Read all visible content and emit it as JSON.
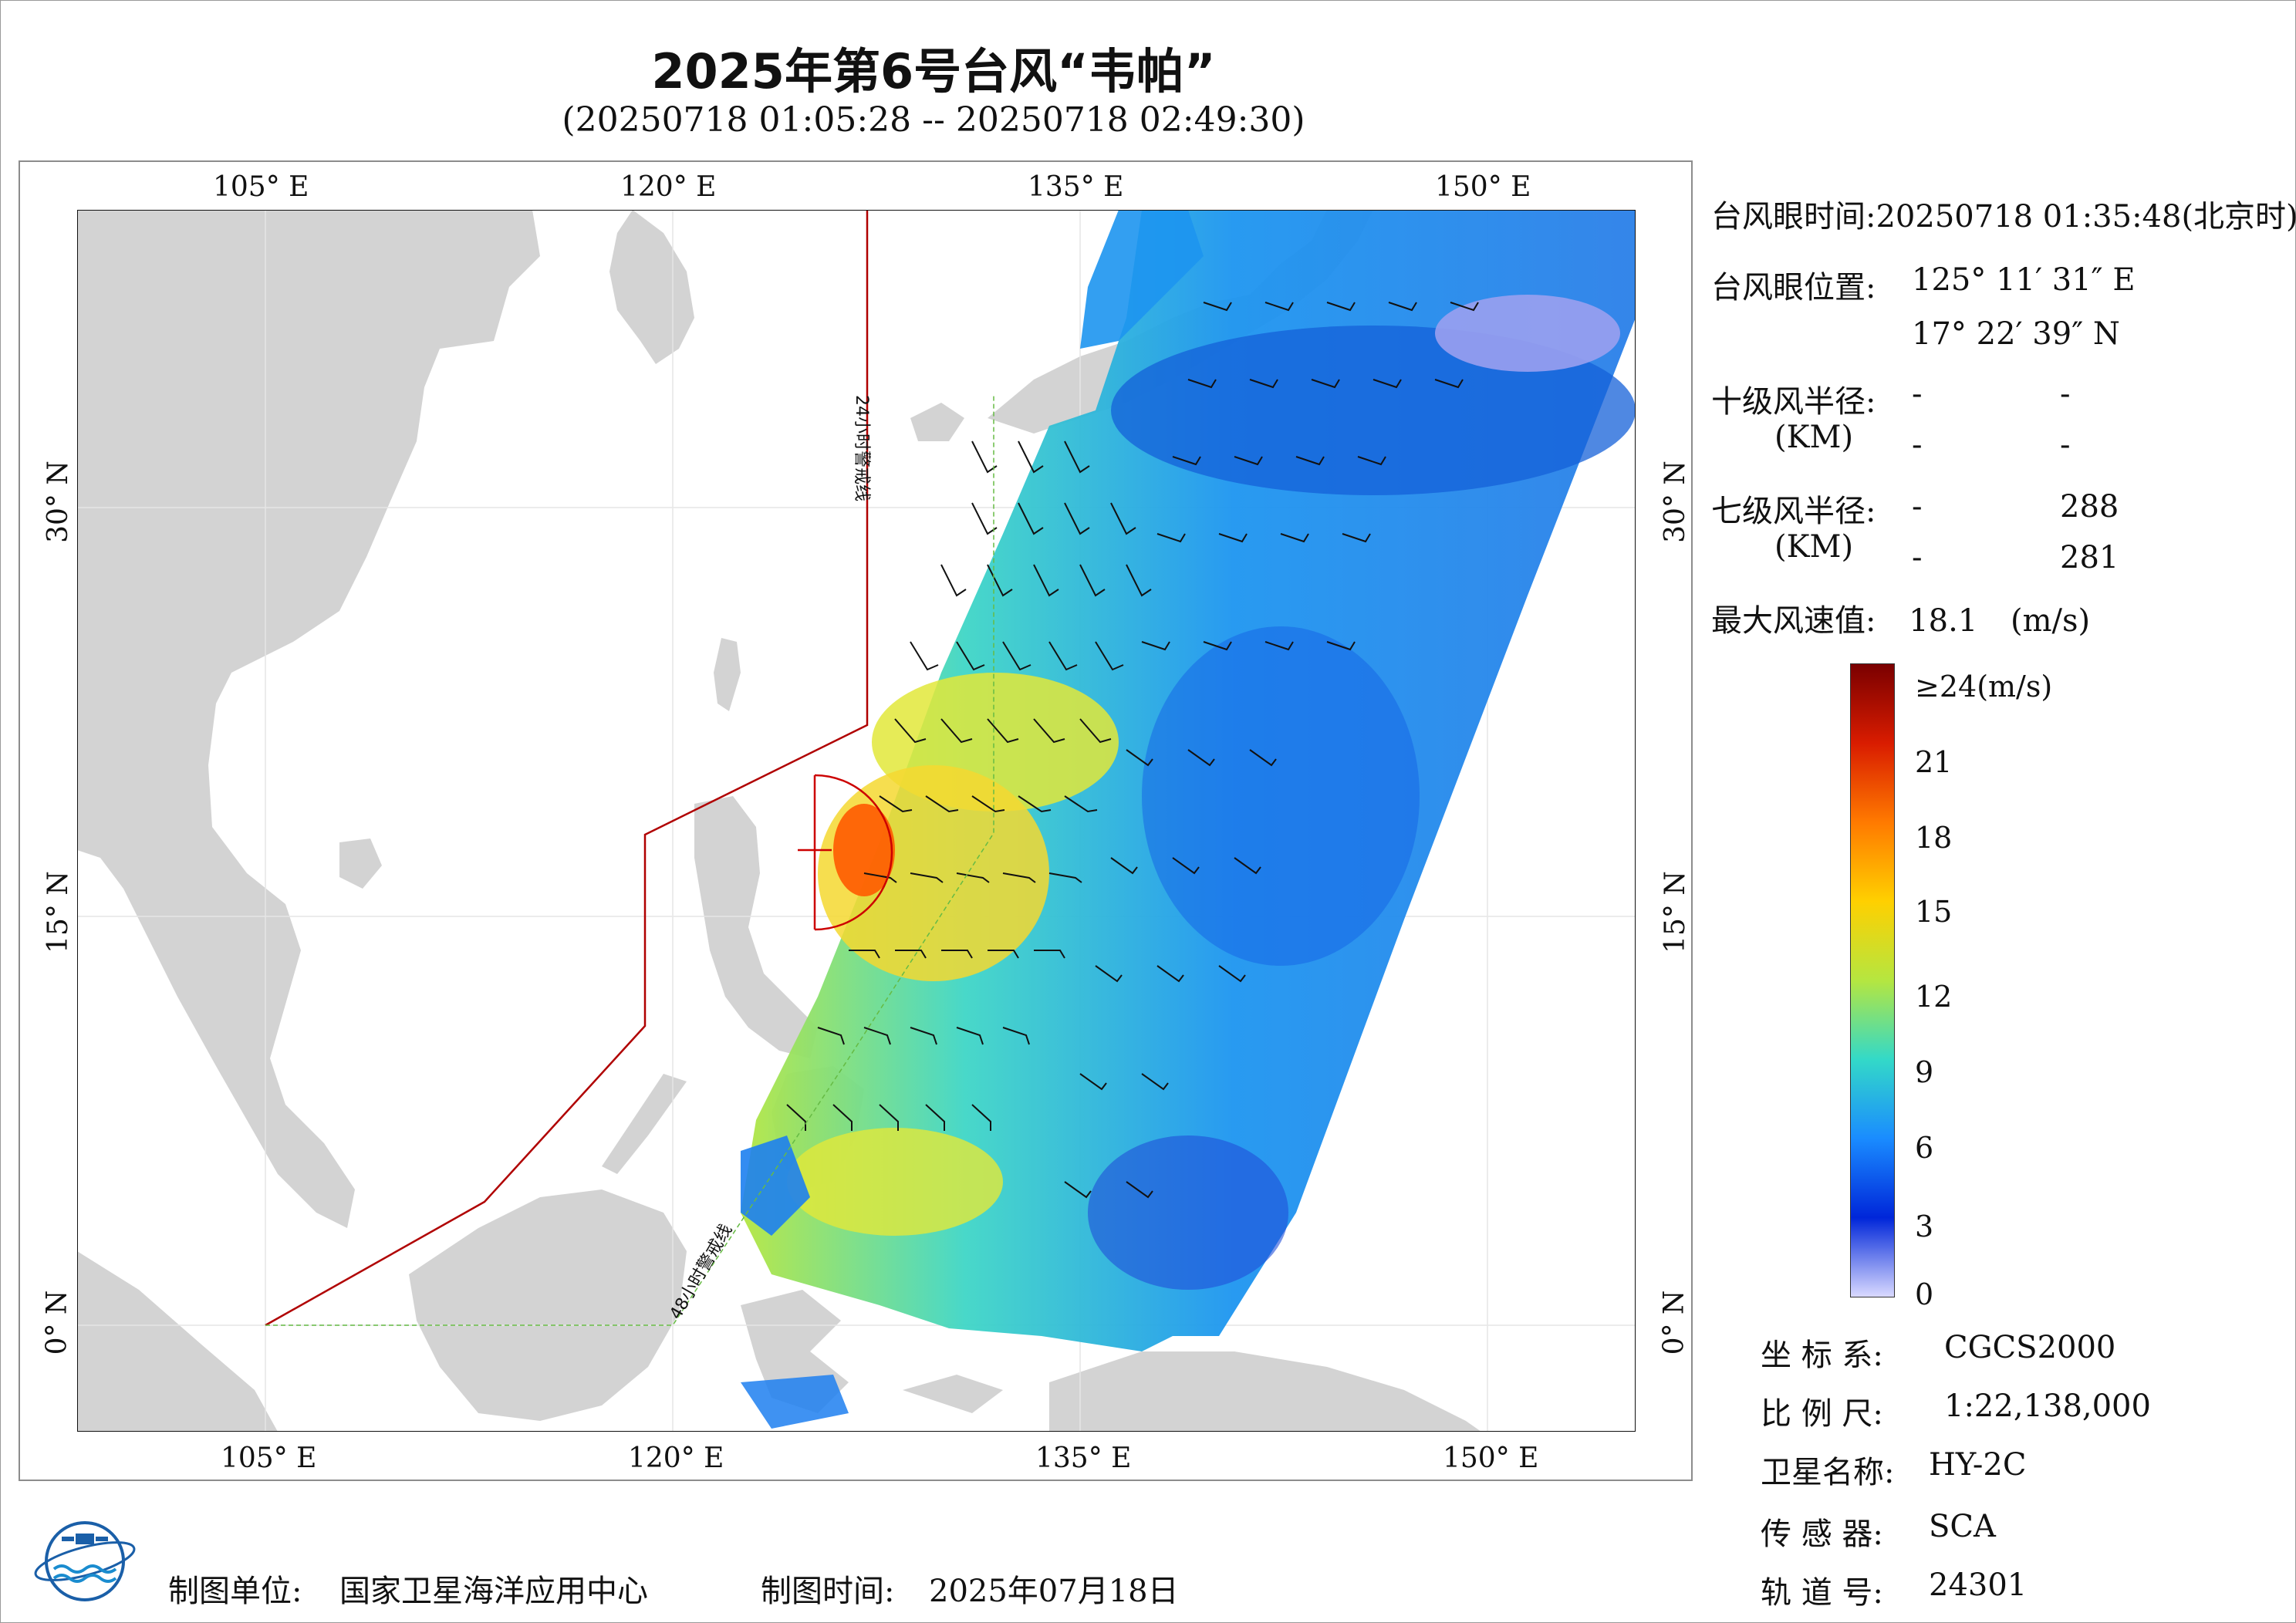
{
  "title": "2025年第6号台风“韦帕”",
  "subtitle": "(20250718 01:05:28 -- 20250718 02:49:30)",
  "map": {
    "lon_ticks_top": [
      "105° E",
      "120° E",
      "135° E",
      "150° E"
    ],
    "lon_ticks_bottom": [
      "105° E",
      "120° E",
      "135° E",
      "150° E"
    ],
    "lat_ticks_left": [
      "30° N",
      "15° N",
      "0° N"
    ],
    "lat_ticks_right": [
      "30° N",
      "15° N",
      "0° N"
    ],
    "warning_line_24": "24小时警戒线",
    "warning_line_48": "48小时警戒线",
    "colors": {
      "land": "#d3d3d3",
      "sea": "#ffffff",
      "warning_line": "#b00000",
      "warning_line_48": "#66bb44"
    }
  },
  "info": {
    "eye_time_label": "台风眼时间:",
    "eye_time_value": "20250718 01:35:48(北京时)",
    "eye_pos_label": "台风眼位置:",
    "eye_lon": "125° 11′ 31″ E",
    "eye_lat": "17° 22′ 39″ N",
    "r10_label": "十级风半径:",
    "r10_unit": "(KM)",
    "r10_values": [
      "-",
      "-",
      "-",
      "-"
    ],
    "r7_label": "七级风半径:",
    "r7_unit": "(KM)",
    "r7_values": [
      "-",
      "288",
      "-",
      "281"
    ],
    "max_wind_label": "最大风速值:",
    "max_wind_value": "18.1",
    "max_wind_unit": "(m/s)"
  },
  "colorbar": {
    "labels": [
      "≥24(m/s)",
      "21",
      "18",
      "15",
      "12",
      "9",
      "6",
      "3",
      "0"
    ],
    "stops": [
      "#7a0000",
      "#d91c00",
      "#ff7a00",
      "#ffd000",
      "#b5e640",
      "#33d9c8",
      "#1a8cff",
      "#0026d9",
      "#d9d9ff"
    ]
  },
  "meta": {
    "crs_label": "坐 标 系:",
    "crs_value": "CGCS2000",
    "scale_label": "比 例 尺:",
    "scale_value": "1:22,138,000",
    "sat_label": "卫星名称:",
    "sat_value": "HY-2C",
    "sensor_label": "传 感 器:",
    "sensor_value": "SCA",
    "orbit_label": "轨 道 号:",
    "orbit_value": "24301"
  },
  "footer": {
    "maker_label": "制图单位:",
    "maker_value": "国家卫星海洋应用中心",
    "date_label": "制图时间:",
    "date_value": "2025年07月18日"
  }
}
